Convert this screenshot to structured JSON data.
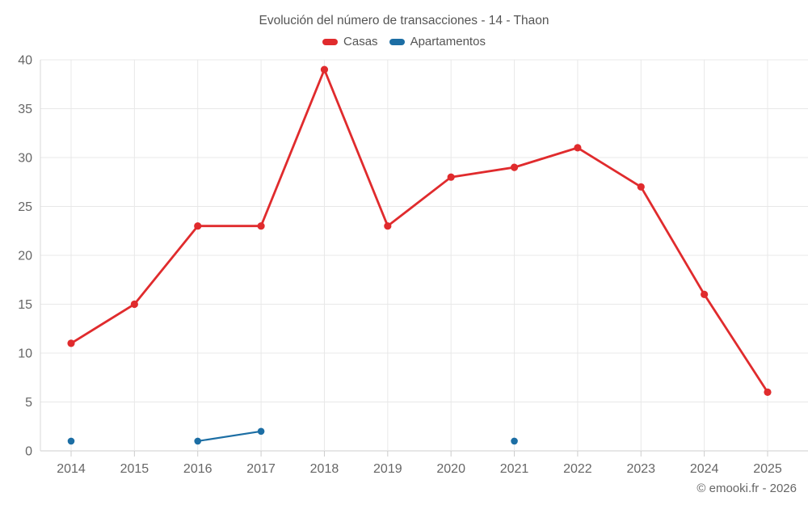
{
  "title": "Evolución del número de transacciones - 14 - Thaon",
  "copyright": "© emooki.fr - 2026",
  "colors": {
    "casas": "#e02b2d",
    "apartamentos": "#1c6ea4",
    "grid": "#e8e8e8",
    "axis": "#cccccc",
    "tick": "#cccccc",
    "label_text": "#666666",
    "title_text": "#555555",
    "background": "#ffffff"
  },
  "legend": {
    "items": [
      {
        "label": "Casas",
        "color": "#e02b2d"
      },
      {
        "label": "Apartamentos",
        "color": "#1c6ea4"
      }
    ]
  },
  "chart_data": {
    "type": "line",
    "title": "Evolución del número de transacciones - 14 - Thaon",
    "categories": [
      "2014",
      "2015",
      "2016",
      "2017",
      "2018",
      "2019",
      "2020",
      "2021",
      "2022",
      "2023",
      "2024",
      "2025"
    ],
    "series": [
      {
        "name": "Casas",
        "color": "#e02b2d",
        "values": [
          11,
          15,
          23,
          23,
          39,
          23,
          28,
          29,
          31,
          27,
          16,
          6
        ]
      },
      {
        "name": "Apartamentos",
        "color": "#1c6ea4",
        "values": [
          1,
          null,
          1,
          2,
          null,
          null,
          null,
          1,
          null,
          null,
          null,
          null
        ]
      }
    ],
    "xlabel": "",
    "ylabel": "",
    "ylim": [
      0,
      40
    ],
    "yticks": [
      0,
      5,
      10,
      15,
      20,
      25,
      30,
      35,
      40
    ],
    "grid": true,
    "legend_position": "top"
  }
}
